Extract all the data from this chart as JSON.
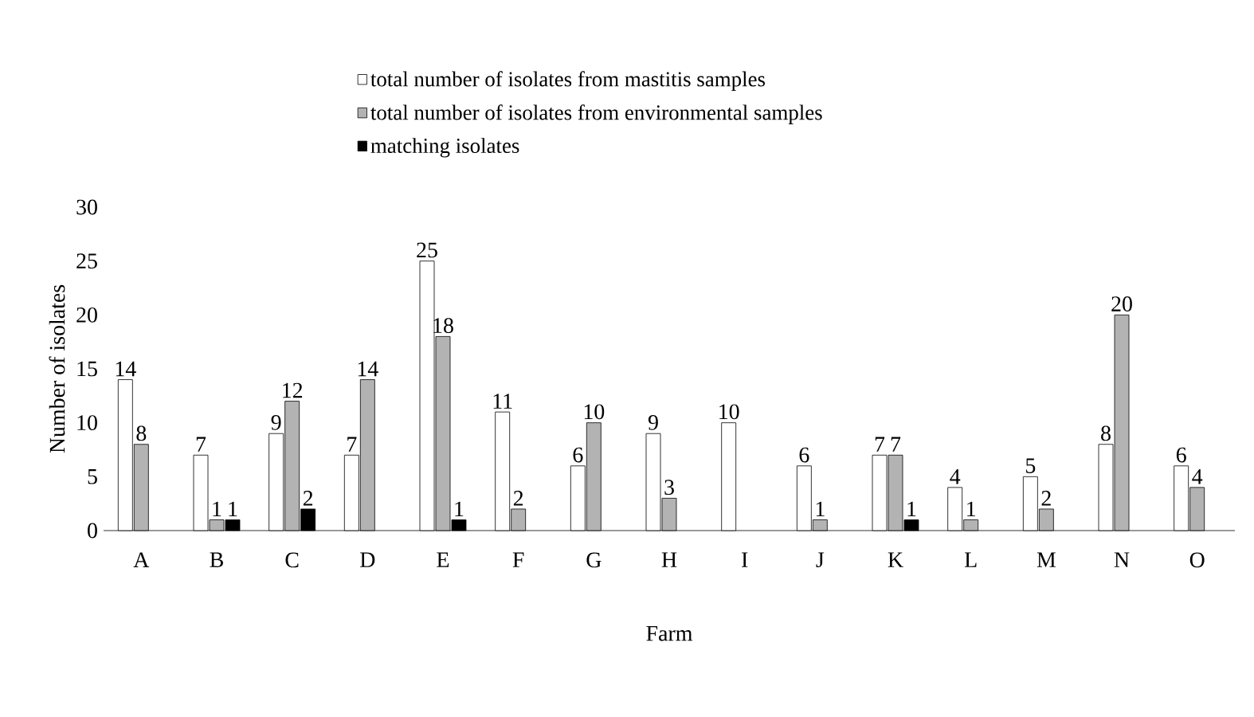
{
  "chart_data": {
    "type": "bar",
    "xlabel": "Farm",
    "ylabel": "Number of isolates",
    "categories": [
      "A",
      "B",
      "C",
      "D",
      "E",
      "F",
      "G",
      "H",
      "I",
      "J",
      "K",
      "L",
      "M",
      "N",
      "O"
    ],
    "series": [
      {
        "name": "total number of isolates from mastitis samples",
        "color": "#ffffff",
        "values": [
          14,
          7,
          9,
          7,
          25,
          11,
          6,
          9,
          10,
          6,
          7,
          4,
          5,
          8,
          6
        ]
      },
      {
        "name": "total number of isolates from environmental samples",
        "color": "#b3b3b3",
        "values": [
          8,
          1,
          12,
          14,
          18,
          2,
          10,
          3,
          null,
          1,
          7,
          1,
          2,
          20,
          4
        ]
      },
      {
        "name": "matching isolates",
        "color": "#000000",
        "values": [
          null,
          1,
          2,
          null,
          1,
          null,
          null,
          null,
          null,
          null,
          1,
          null,
          null,
          null,
          null
        ]
      }
    ],
    "ylim": [
      0,
      30
    ],
    "yticks": [
      0,
      5,
      10,
      15,
      20,
      25,
      30
    ],
    "data_labels": true,
    "legend": "top",
    "grid": false
  }
}
